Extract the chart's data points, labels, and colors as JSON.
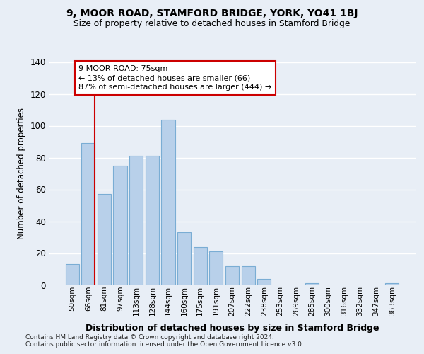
{
  "title1": "9, MOOR ROAD, STAMFORD BRIDGE, YORK, YO41 1BJ",
  "title2": "Size of property relative to detached houses in Stamford Bridge",
  "xlabel": "Distribution of detached houses by size in Stamford Bridge",
  "ylabel": "Number of detached properties",
  "footnote1": "Contains HM Land Registry data © Crown copyright and database right 2024.",
  "footnote2": "Contains public sector information licensed under the Open Government Licence v3.0.",
  "categories": [
    "50sqm",
    "66sqm",
    "81sqm",
    "97sqm",
    "113sqm",
    "128sqm",
    "144sqm",
    "160sqm",
    "175sqm",
    "191sqm",
    "207sqm",
    "222sqm",
    "238sqm",
    "253sqm",
    "269sqm",
    "285sqm",
    "300sqm",
    "316sqm",
    "332sqm",
    "347sqm",
    "363sqm"
  ],
  "values": [
    13,
    89,
    57,
    75,
    81,
    81,
    104,
    33,
    24,
    21,
    12,
    12,
    4,
    0,
    0,
    1,
    0,
    0,
    0,
    0,
    1
  ],
  "bar_color": "#b8d0ea",
  "bar_edge_color": "#7aadd4",
  "bg_color": "#e8eef6",
  "grid_color": "#ffffff",
  "vline_color": "#cc0000",
  "annotation_text": "9 MOOR ROAD: 75sqm\n← 13% of detached houses are smaller (66)\n87% of semi-detached houses are larger (444) →",
  "ylim_max": 140,
  "yticks": [
    0,
    20,
    40,
    60,
    80,
    100,
    120,
    140
  ]
}
